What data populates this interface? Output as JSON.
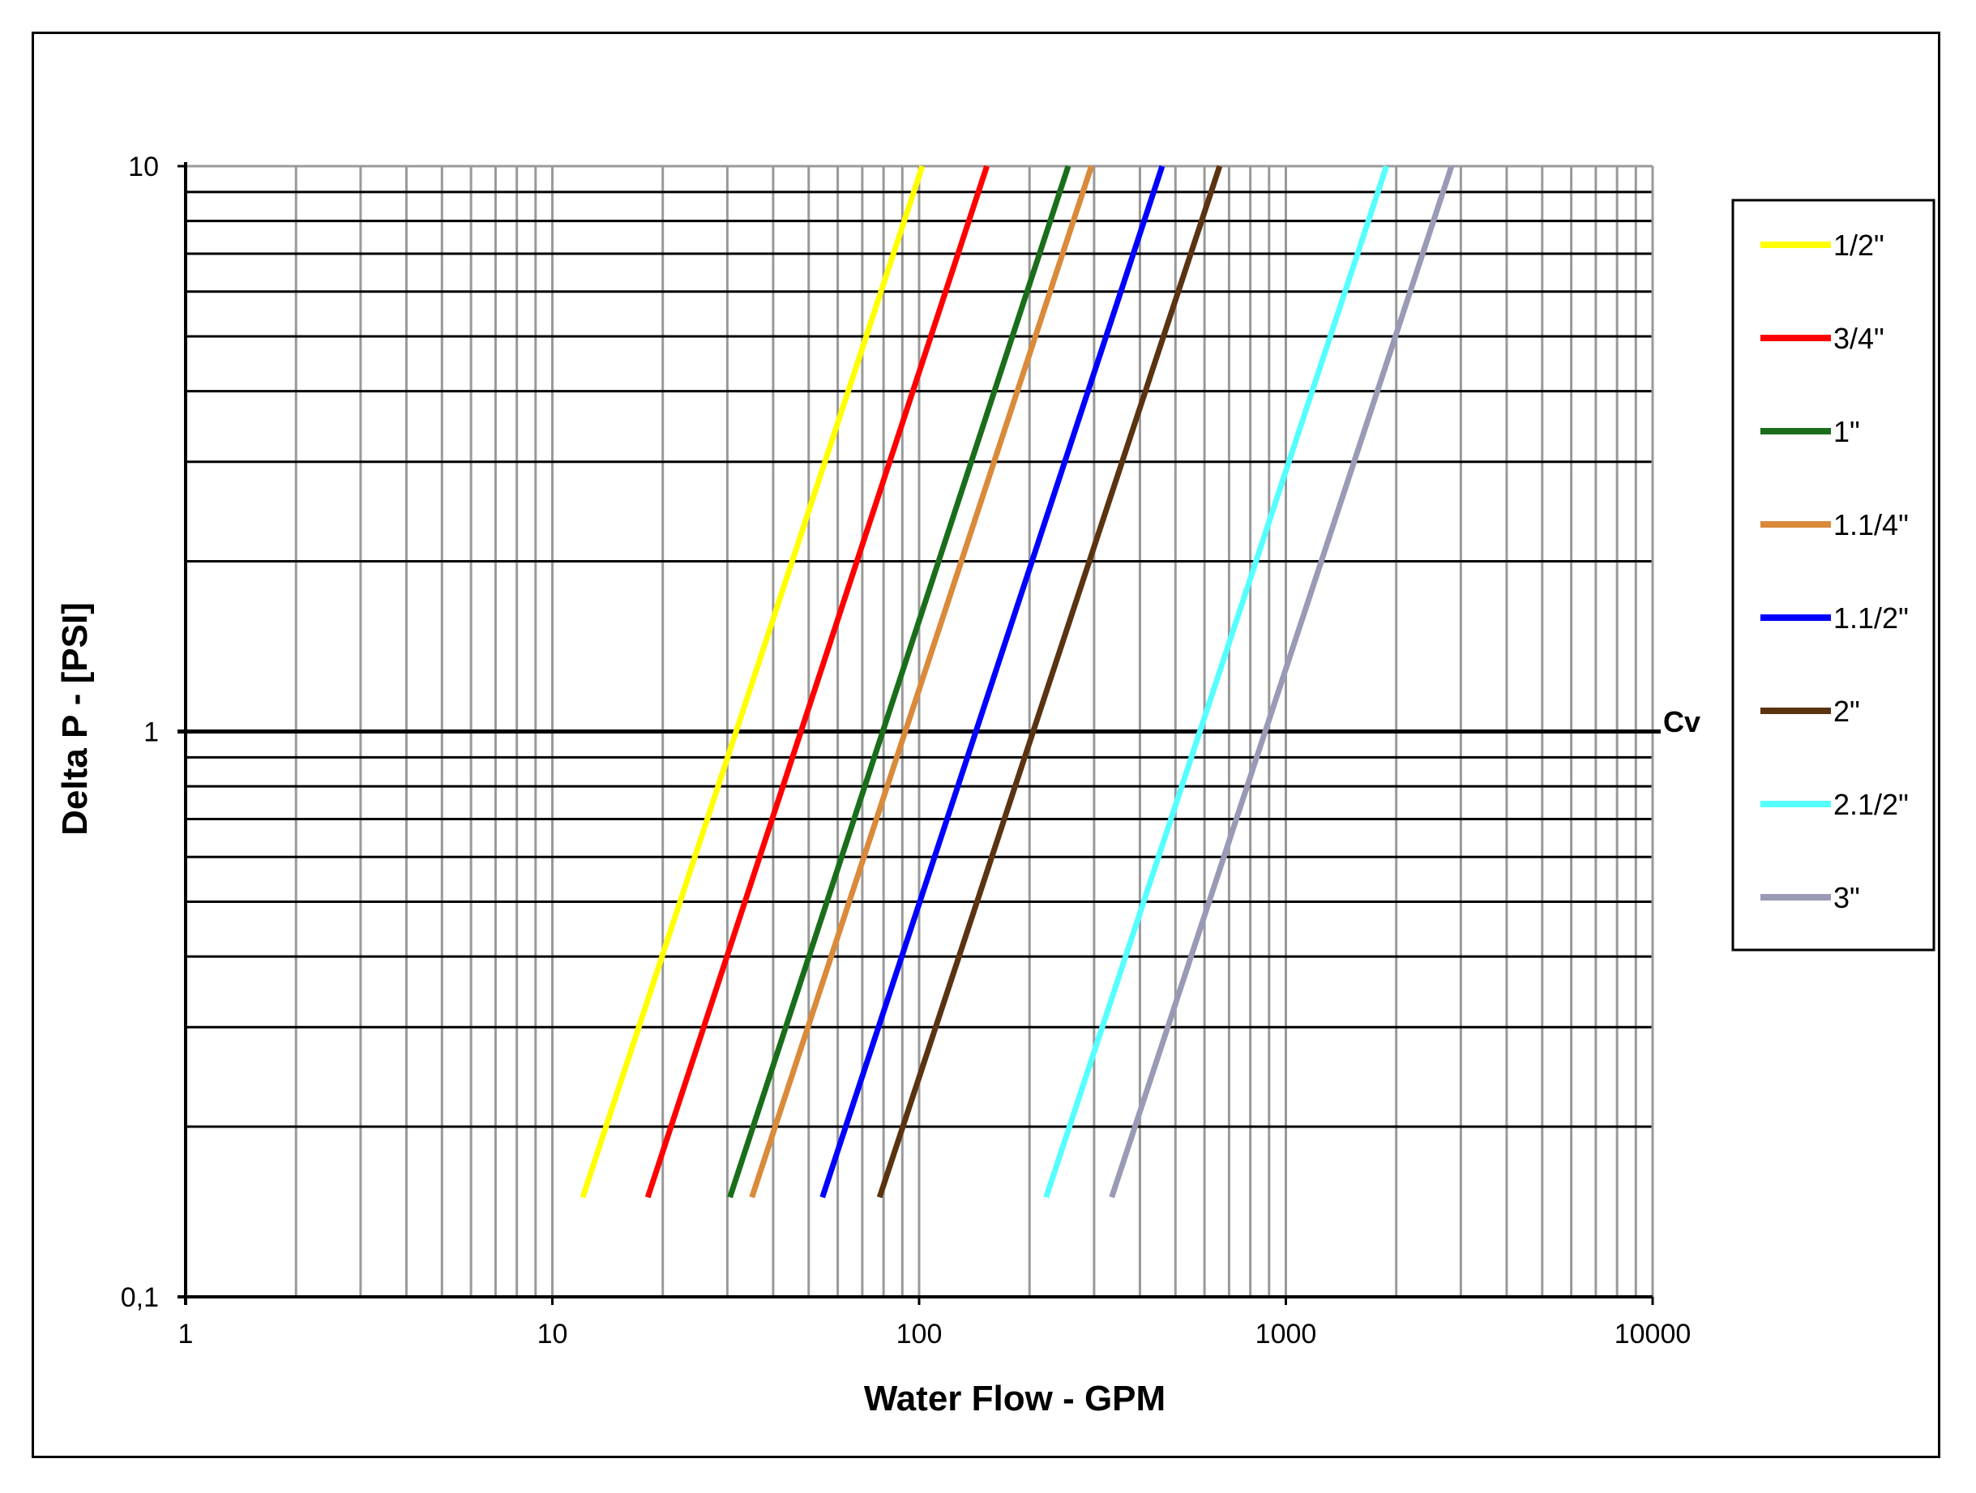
{
  "chart_data": {
    "type": "line",
    "title": "",
    "xlabel": "Water Flow  - GPM",
    "ylabel": "Delta P - [PSI]",
    "x_scale": "log",
    "y_scale": "log",
    "xlim": [
      1,
      10000
    ],
    "ylim": [
      0.1,
      10
    ],
    "x_tick_labels": [
      "1",
      "10",
      "100",
      "1000",
      "10000"
    ],
    "x_tick_values": [
      1,
      10,
      100,
      1000,
      10000
    ],
    "y_tick_labels": [
      "0,1",
      "1",
      "10"
    ],
    "y_tick_values": [
      0.1,
      1,
      10
    ],
    "grid": true,
    "legend_position": "right",
    "annotation": {
      "text": "Cv",
      "y": 1
    },
    "colors": {
      "frame": "#000000",
      "vertical_grid": "#999999",
      "horizontal_grid": "#000000",
      "cv_line": "#000000"
    },
    "series": [
      {
        "name": "1/2\"",
        "color": "#ffff00",
        "x": [
          12.1,
          102
        ],
        "y": [
          0.15,
          10
        ]
      },
      {
        "name": "3/4\"",
        "color": "#ff0000",
        "x": [
          18.2,
          153
        ],
        "y": [
          0.15,
          10
        ]
      },
      {
        "name": "1\"",
        "color": "#1a6e1a",
        "x": [
          30.5,
          255
        ],
        "y": [
          0.15,
          10
        ]
      },
      {
        "name": "1.1/4\"",
        "color": "#d98a3a",
        "x": [
          35,
          295
        ],
        "y": [
          0.15,
          10
        ]
      },
      {
        "name": "1.1/2\"",
        "color": "#0000ff",
        "x": [
          54.5,
          460
        ],
        "y": [
          0.15,
          10
        ]
      },
      {
        "name": "2\"",
        "color": "#5a3311",
        "x": [
          78,
          660
        ],
        "y": [
          0.15,
          10
        ]
      },
      {
        "name": "2.1/2\"",
        "color": "#55ffff",
        "x": [
          222,
          1880
        ],
        "y": [
          0.15,
          10
        ]
      },
      {
        "name": "3\"",
        "color": "#9a9ab6",
        "x": [
          335,
          2830
        ],
        "y": [
          0.15,
          10
        ]
      }
    ]
  }
}
